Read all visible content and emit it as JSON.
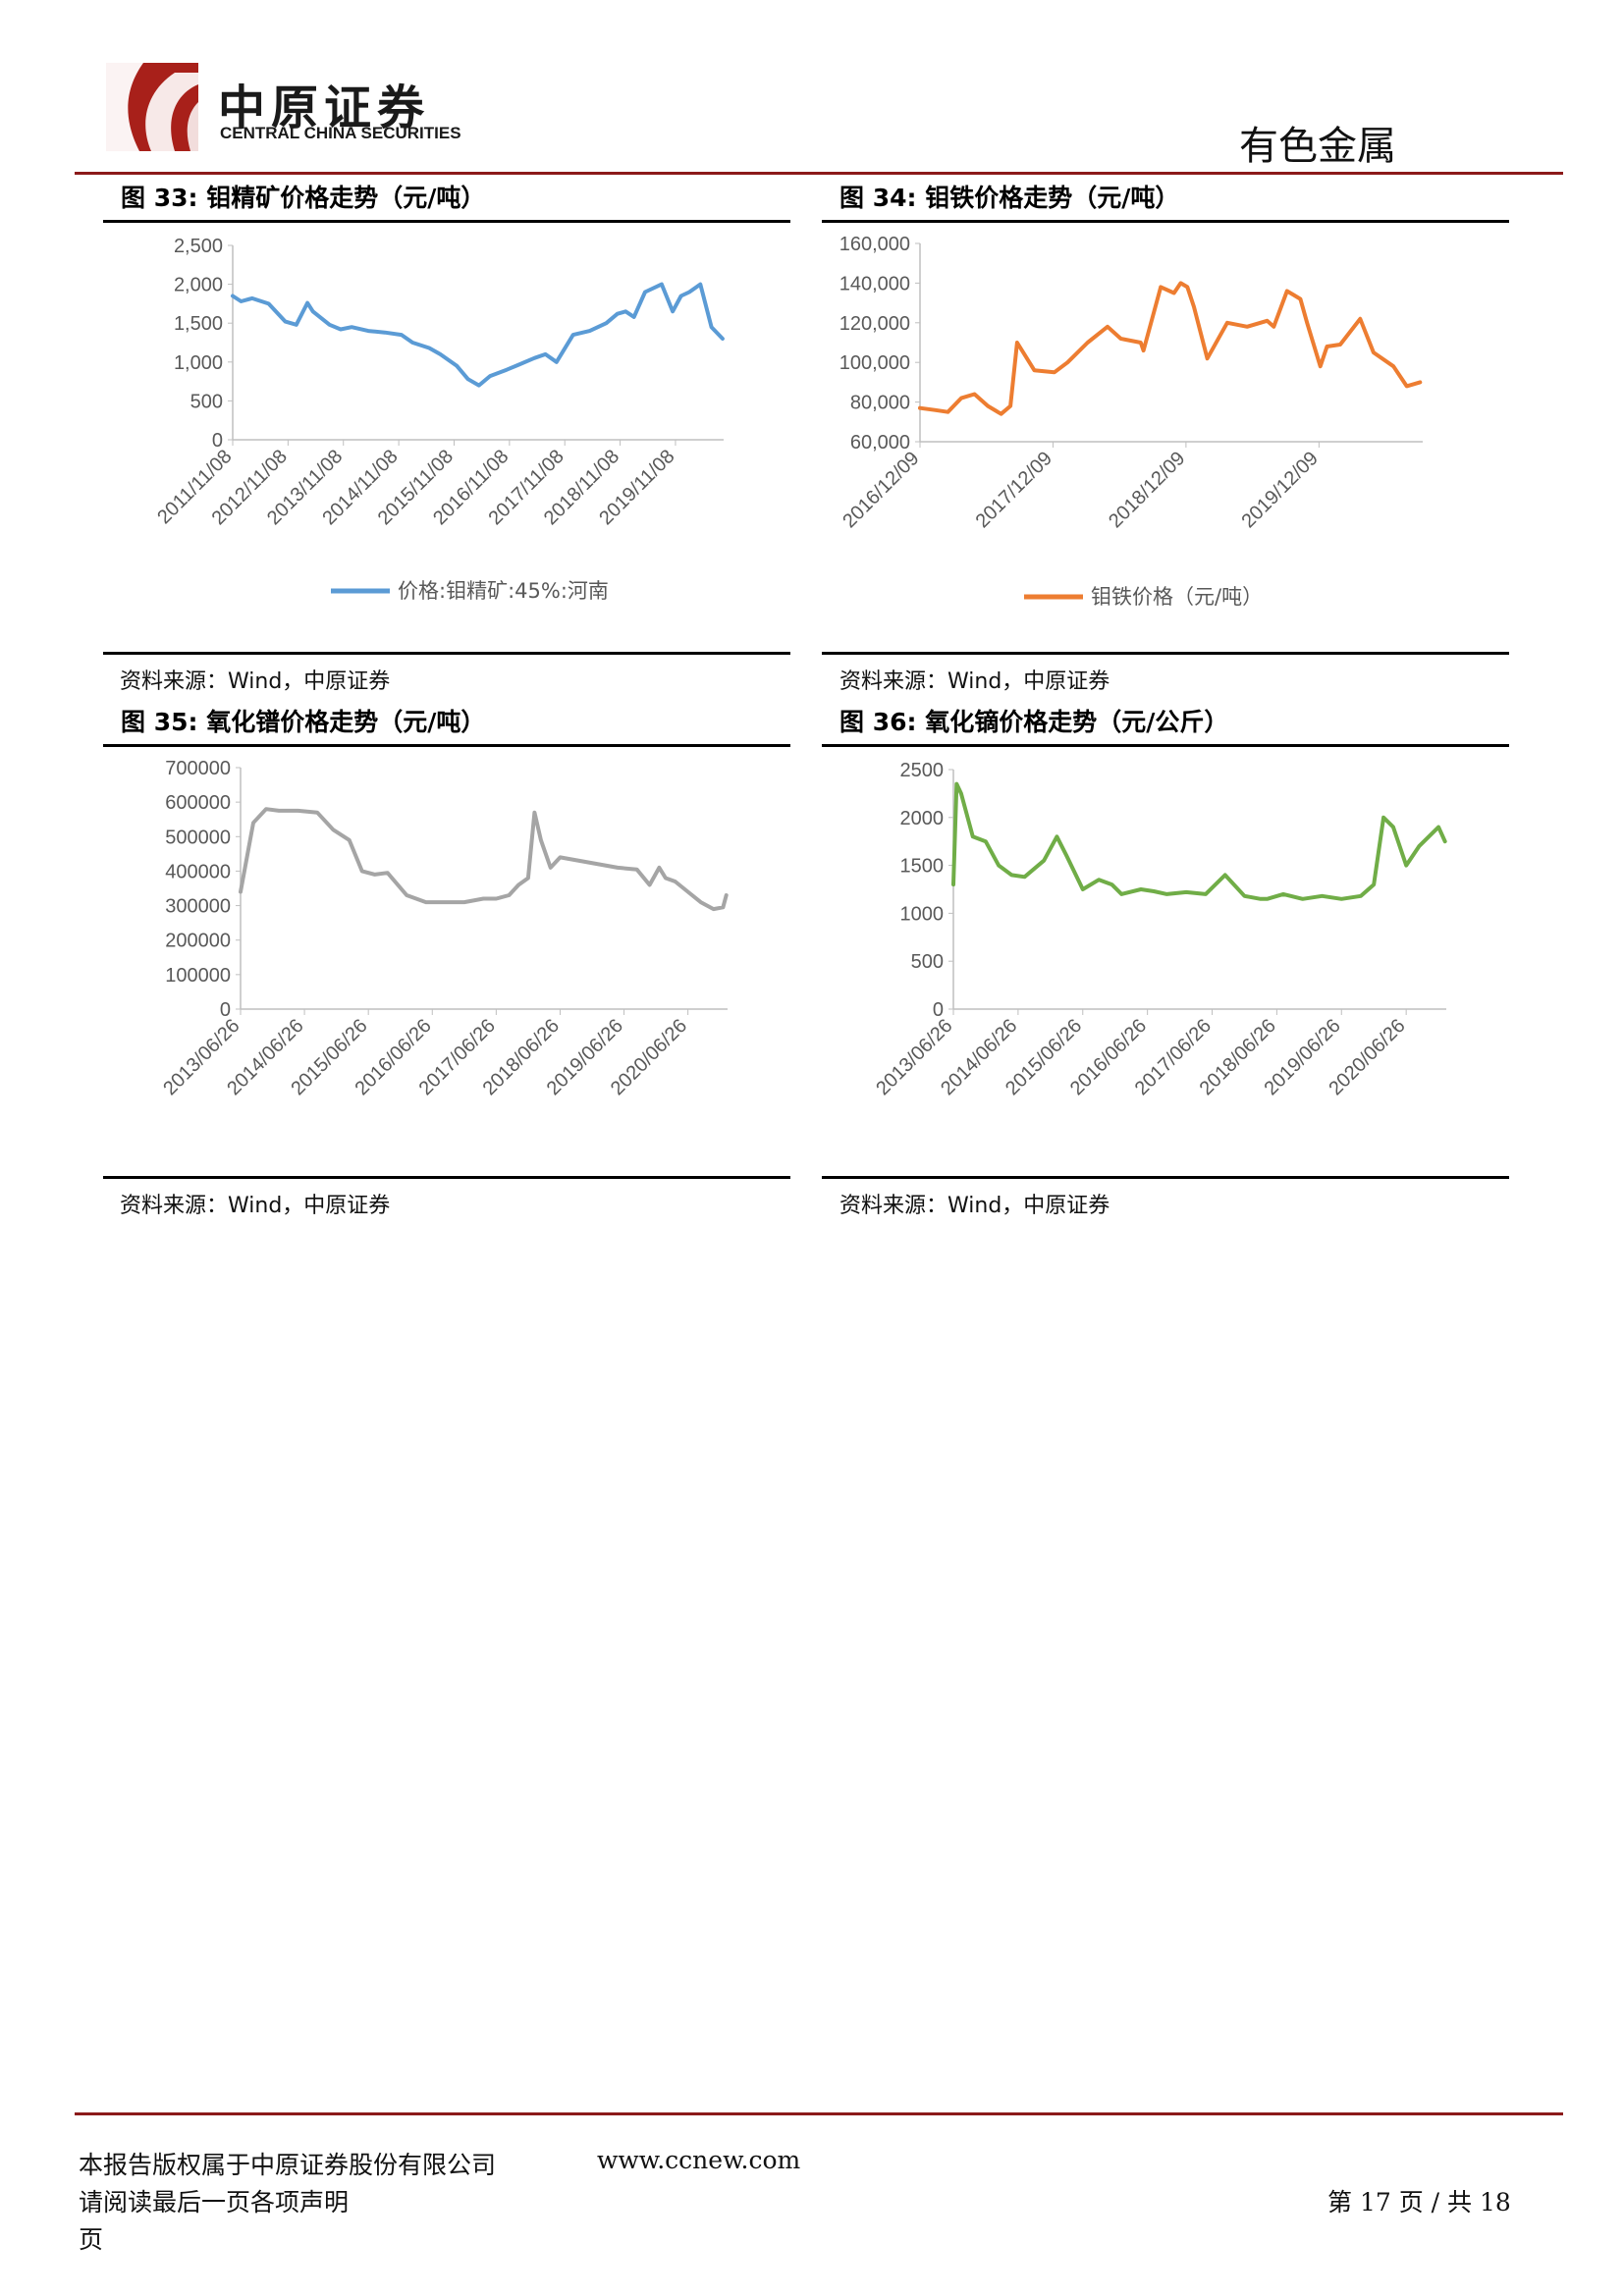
{
  "header": {
    "logo_cn": "中原证券",
    "logo_en": "CENTRAL CHINA SECURITIES",
    "sector": "有色金属",
    "accent_color": "#8b1a1a"
  },
  "figures": [
    {
      "label": "图 33:",
      "title": "钼精矿价格走势（元/吨）",
      "source": "资料来源：Wind，中原证券"
    },
    {
      "label": "图 34:",
      "title": "钼铁价格走势（元/吨）",
      "source": "资料来源：Wind，中原证券"
    },
    {
      "label": "图 35:",
      "title": "氧化镨价格走势（元/吨）",
      "source": "资料来源：Wind，中原证券"
    },
    {
      "label": "图 36:",
      "title": "氧化镝价格走势（元/公斤）",
      "source": "资料来源：Wind，中原证券"
    }
  ],
  "chart_data": [
    {
      "type": "line",
      "title": "钼精矿价格走势（元/吨）",
      "color": "#5b9bd5",
      "ylim": [
        0,
        2500
      ],
      "yticks": [
        "2,500",
        "2,000",
        "1,500",
        "1,000",
        "500",
        "0"
      ],
      "ytick_values": [
        2500,
        2000,
        1500,
        1000,
        500,
        0
      ],
      "xticks": [
        "2011/11/08",
        "2012/11/08",
        "2013/11/08",
        "2014/11/08",
        "2015/11/08",
        "2016/11/08",
        "2017/11/08",
        "2018/11/08",
        "2019/11/08"
      ],
      "x": [
        2011.85,
        2012.0,
        2012.2,
        2012.5,
        2012.8,
        2013.0,
        2013.2,
        2013.3,
        2013.6,
        2013.8,
        2014.0,
        2014.3,
        2014.6,
        2014.9,
        2015.1,
        2015.4,
        2015.6,
        2015.9,
        2016.1,
        2016.3,
        2016.5,
        2016.8,
        2017.0,
        2017.3,
        2017.5,
        2017.7,
        2018.0,
        2018.3,
        2018.6,
        2018.8,
        2018.95,
        2019.1,
        2019.3,
        2019.6,
        2019.8,
        2019.95,
        2020.1,
        2020.3,
        2020.5,
        2020.7
      ],
      "y": [
        1850,
        1780,
        1820,
        1750,
        1520,
        1480,
        1760,
        1650,
        1480,
        1420,
        1450,
        1400,
        1380,
        1350,
        1250,
        1180,
        1100,
        950,
        780,
        700,
        820,
        900,
        960,
        1050,
        1100,
        1000,
        1350,
        1400,
        1500,
        1620,
        1650,
        1580,
        1900,
        2000,
        1650,
        1850,
        1900,
        2000,
        1450,
        1300
      ],
      "legend": "价格:钼精矿:45%:河南"
    },
    {
      "type": "line",
      "title": "钼铁价格走势（元/吨）",
      "color": "#ed7d31",
      "ylim": [
        60000,
        160000
      ],
      "yticks": [
        "160,000",
        "140,000",
        "120,000",
        "100,000",
        "80,000",
        "60,000"
      ],
      "ytick_values": [
        160000,
        140000,
        120000,
        100000,
        80000,
        60000
      ],
      "xticks": [
        "2016/12/09",
        "2017/12/09",
        "2018/12/09",
        "2019/12/09"
      ],
      "x": [
        2016.94,
        2017.05,
        2017.15,
        2017.25,
        2017.35,
        2017.45,
        2017.55,
        2017.62,
        2017.67,
        2017.8,
        2017.95,
        2018.05,
        2018.2,
        2018.35,
        2018.45,
        2018.6,
        2018.62,
        2018.75,
        2018.85,
        2018.9,
        2018.95,
        2019.0,
        2019.1,
        2019.25,
        2019.4,
        2019.55,
        2019.6,
        2019.7,
        2019.75,
        2019.8,
        2019.85,
        2019.95,
        2020.0,
        2020.1,
        2020.25,
        2020.35,
        2020.5,
        2020.6,
        2020.7
      ],
      "y": [
        77000,
        76000,
        75000,
        82000,
        84000,
        78000,
        74000,
        78000,
        110000,
        96000,
        95000,
        100000,
        110000,
        118000,
        112000,
        110000,
        106000,
        138000,
        135000,
        140000,
        138000,
        128000,
        102000,
        120000,
        118000,
        121000,
        118000,
        136000,
        134000,
        132000,
        120000,
        98000,
        108000,
        109000,
        122000,
        105000,
        98000,
        88000,
        90000
      ],
      "legend": "钼铁价格（元/吨）"
    },
    {
      "type": "line",
      "title": "氧化镨价格走势（元/吨）",
      "color": "#a5a5a5",
      "ylim": [
        0,
        700000
      ],
      "yticks": [
        "700000",
        "600000",
        "500000",
        "400000",
        "300000",
        "200000",
        "100000",
        "0"
      ],
      "ytick_values": [
        700000,
        600000,
        500000,
        400000,
        300000,
        200000,
        100000,
        0
      ],
      "xticks": [
        "2013/06/26",
        "2014/06/26",
        "2015/06/26",
        "2016/06/26",
        "2017/06/26",
        "2018/06/26",
        "2019/06/26",
        "2020/06/26"
      ],
      "x": [
        2013.0,
        2013.08,
        2013.2,
        2013.4,
        2013.6,
        2013.9,
        2014.2,
        2014.45,
        2014.7,
        2014.9,
        2015.1,
        2015.3,
        2015.6,
        2015.9,
        2016.2,
        2016.5,
        2016.8,
        2017.0,
        2017.2,
        2017.35,
        2017.5,
        2017.6,
        2017.7,
        2017.85,
        2018.0,
        2018.3,
        2018.6,
        2018.9,
        2019.2,
        2019.4,
        2019.55,
        2019.65,
        2019.8,
        2020.0,
        2020.2,
        2020.4,
        2020.55,
        2020.6
      ],
      "y": [
        340000,
        420000,
        540000,
        580000,
        575000,
        575000,
        570000,
        520000,
        490000,
        400000,
        390000,
        395000,
        330000,
        310000,
        310000,
        310000,
        320000,
        320000,
        330000,
        360000,
        380000,
        570000,
        490000,
        410000,
        440000,
        430000,
        420000,
        410000,
        405000,
        360000,
        410000,
        380000,
        370000,
        340000,
        310000,
        290000,
        295000,
        330000
      ],
      "legend": ""
    },
    {
      "type": "line",
      "title": "氧化镝价格走势（元/公斤）",
      "color": "#70ad47",
      "ylim": [
        0,
        2500
      ],
      "yticks": [
        "2500",
        "2000",
        "1500",
        "1000",
        "500",
        "0"
      ],
      "ytick_values": [
        2500,
        2000,
        1500,
        1000,
        500,
        0
      ],
      "xticks": [
        "2013/06/26",
        "2014/06/26",
        "2015/06/26",
        "2016/06/26",
        "2017/06/26",
        "2018/06/26",
        "2019/06/26",
        "2020/06/26"
      ],
      "x": [
        2013.0,
        2013.05,
        2013.12,
        2013.3,
        2013.5,
        2013.7,
        2013.9,
        2014.1,
        2014.4,
        2014.6,
        2014.75,
        2015.0,
        2015.25,
        2015.45,
        2015.6,
        2015.9,
        2016.1,
        2016.3,
        2016.6,
        2016.9,
        2017.2,
        2017.5,
        2017.75,
        2017.85,
        2018.1,
        2018.4,
        2018.7,
        2019.0,
        2019.3,
        2019.5,
        2019.65,
        2019.8,
        2020.0,
        2020.2,
        2020.35,
        2020.5,
        2020.6
      ],
      "y": [
        1300,
        2350,
        2250,
        1800,
        1750,
        1500,
        1400,
        1380,
        1550,
        1800,
        1600,
        1250,
        1350,
        1300,
        1200,
        1250,
        1230,
        1200,
        1220,
        1200,
        1400,
        1180,
        1150,
        1150,
        1200,
        1150,
        1180,
        1150,
        1180,
        1300,
        2000,
        1900,
        1500,
        1700,
        1800,
        1900,
        1750
      ],
      "legend": ""
    }
  ],
  "footer": {
    "rights": "本报告版权属于中原证券股份有限公司",
    "website": "www.ccnew.com",
    "disclaimer": "请阅读最后一页各项声明",
    "page_word": "页",
    "page_info": "第 17 页 / 共 18"
  }
}
